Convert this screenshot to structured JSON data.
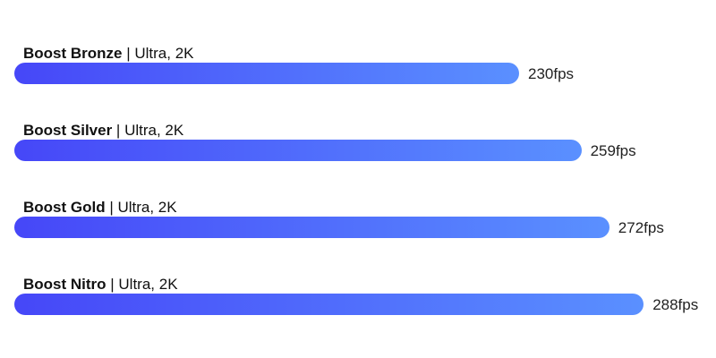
{
  "chart_data": {
    "type": "bar",
    "orientation": "horizontal",
    "unit": "fps",
    "categories": [
      "Boost Bronze",
      "Boost Silver",
      "Boost Gold",
      "Boost Nitro"
    ],
    "settings": [
      "Ultra, 2K",
      "Ultra, 2K",
      "Ultra, 2K",
      "Ultra, 2K"
    ],
    "series": [
      {
        "values": [
          230,
          259,
          272,
          288
        ],
        "labels": [
          "230fps",
          "259fps",
          "272fps",
          "288fps"
        ]
      }
    ],
    "colors": {
      "gradient_start": "#4647f8",
      "gradient_end": "#5a90ff"
    },
    "legend": "none",
    "grid": false
  }
}
